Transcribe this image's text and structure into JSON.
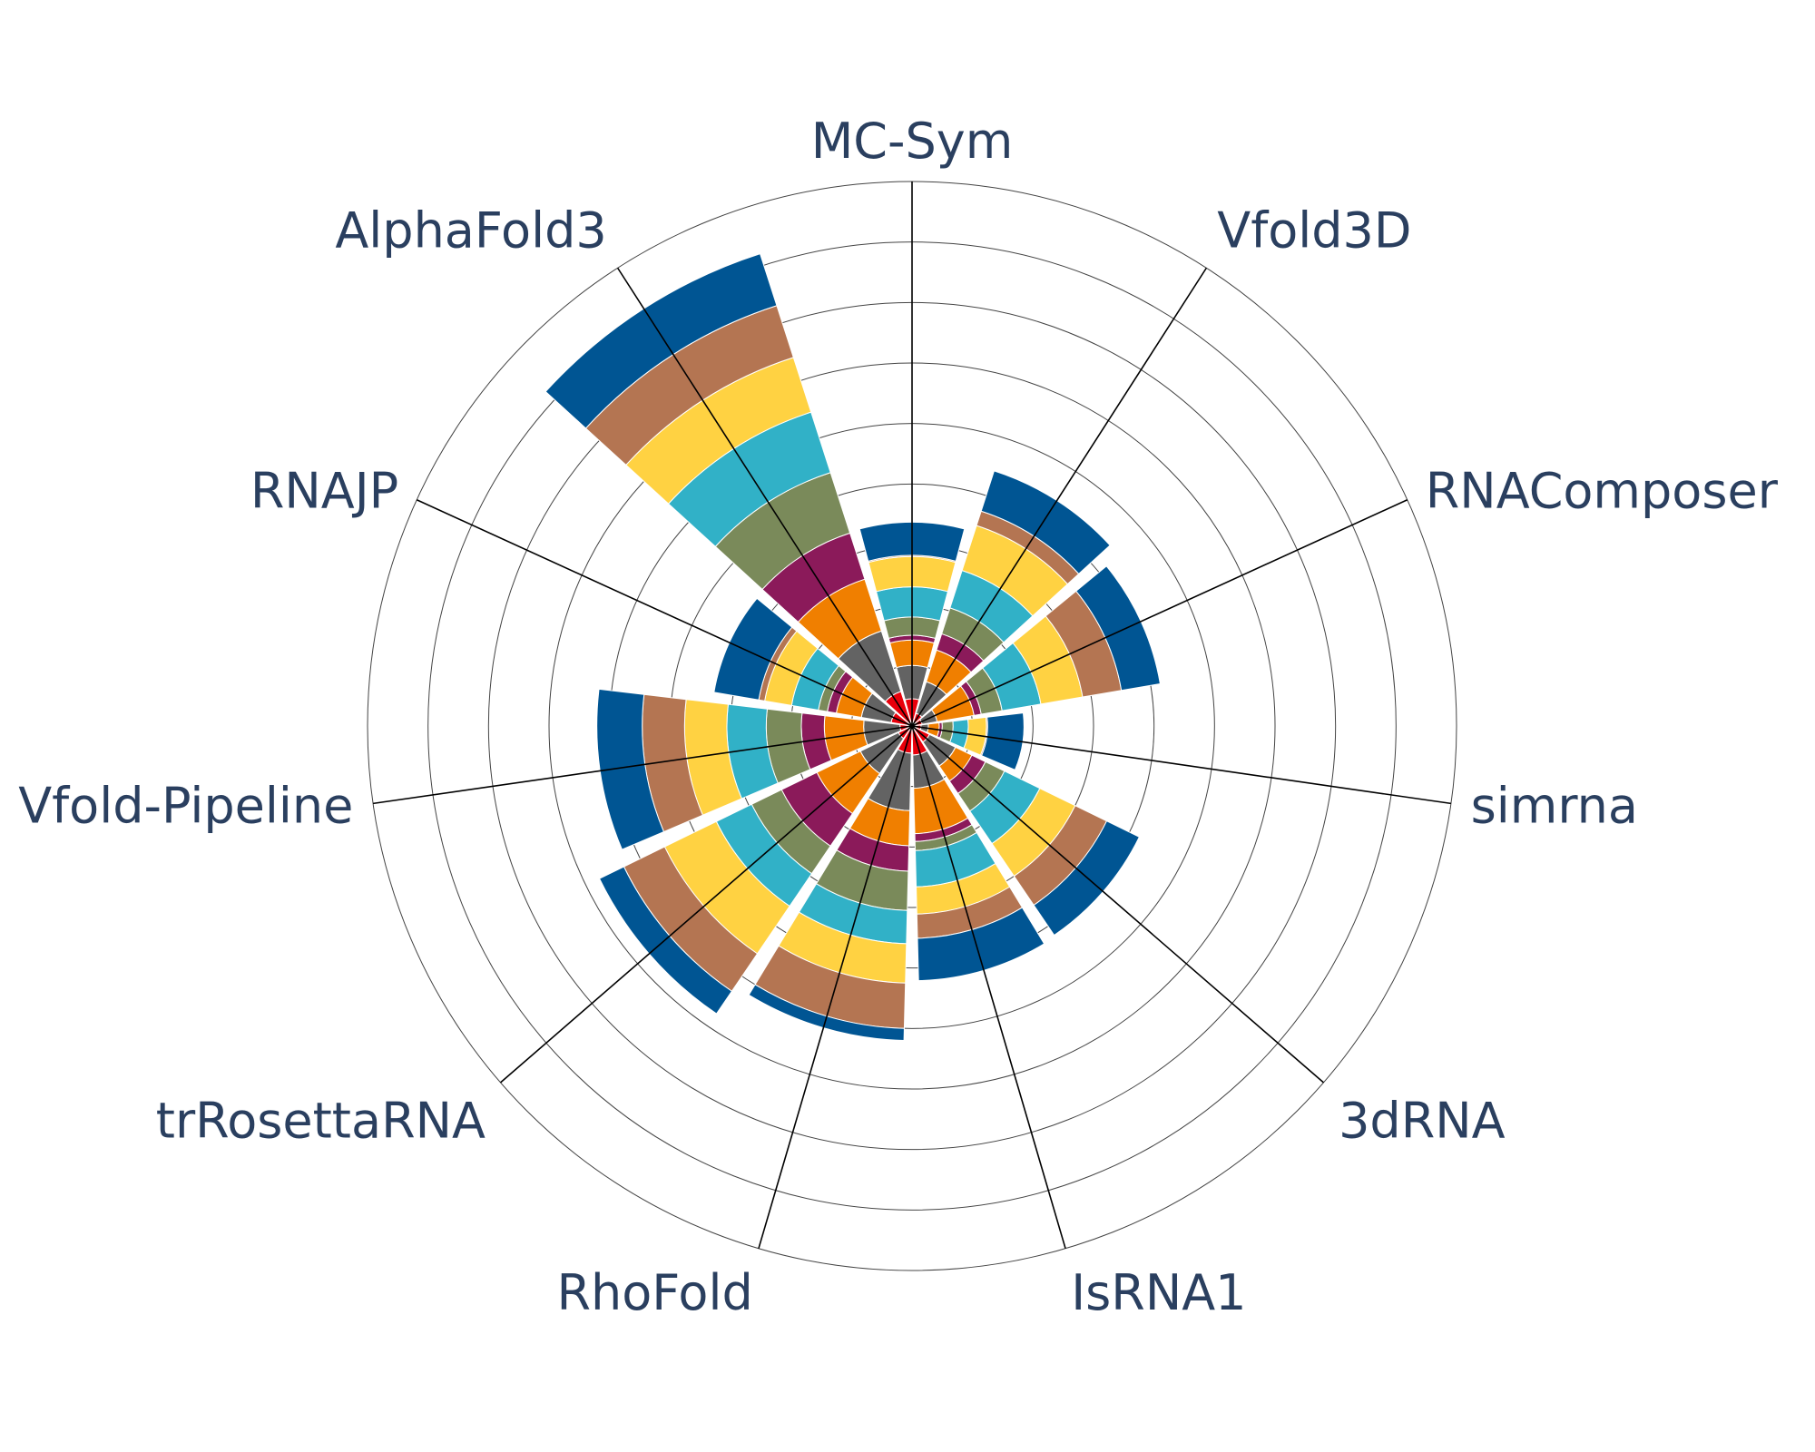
{
  "chart_data": {
    "type": "barpolar",
    "stacked": true,
    "direction": "clockwise",
    "rotation_deg": 90,
    "categories": [
      "MC-Sym",
      "Vfold3D",
      "RNAComposer",
      "simrna",
      "3dRNA",
      "IsRNA1",
      "RhoFold",
      "trRosettaRNA",
      "Vfold-Pipeline",
      "RNAJP",
      "AlphaFold3"
    ],
    "radial_range": [
      0,
      9
    ],
    "grid_rings": [
      1,
      2,
      3,
      4,
      5,
      6,
      7,
      8,
      9
    ],
    "series": [
      {
        "color": "#e8000b",
        "values": [
          0.45,
          0.22,
          0.17,
          0.15,
          0.32,
          0.48,
          0.45,
          0.25,
          0.2,
          0.35,
          0.6
        ]
      },
      {
        "color": "#636363",
        "values": [
          0.55,
          0.55,
          0.25,
          0.12,
          0.48,
          0.55,
          0.95,
          0.7,
          0.6,
          0.5,
          1.05
        ]
      },
      {
        "color": "#f07f00",
        "values": [
          0.42,
          0.55,
          0.62,
          0.18,
          0.3,
          0.75,
          0.58,
          0.8,
          0.65,
          0.42,
          0.9
        ]
      },
      {
        "color": "#8b1a5a",
        "values": [
          0.08,
          0.28,
          0.12,
          0.05,
          0.25,
          0.13,
          0.42,
          0.65,
          0.38,
          0.15,
          0.8
        ]
      },
      {
        "color": "#7a8a5a",
        "values": [
          0.3,
          0.45,
          0.35,
          0.18,
          0.35,
          0.15,
          0.65,
          0.55,
          0.58,
          0.15,
          1.05
        ]
      },
      {
        "color": "#31b1c7",
        "values": [
          0.5,
          0.65,
          0.65,
          0.25,
          0.65,
          0.6,
          0.55,
          0.65,
          0.65,
          0.45,
          1.05
        ]
      },
      {
        "color": "#ffd242",
        "values": [
          0.5,
          0.78,
          0.7,
          0.3,
          0.65,
          0.45,
          0.65,
          0.95,
          0.7,
          0.45,
          0.95
        ]
      },
      {
        "color": "#b47552",
        "values": [
          0.02,
          0.25,
          0.65,
          0.02,
          0.58,
          0.4,
          0.75,
          0.75,
          0.7,
          0.1,
          0.9
        ]
      },
      {
        "color": "#005593",
        "values": [
          0.55,
          0.7,
          0.65,
          0.6,
          0.6,
          0.7,
          0.2,
          0.45,
          0.75,
          0.75,
          0.9
        ]
      }
    ]
  }
}
